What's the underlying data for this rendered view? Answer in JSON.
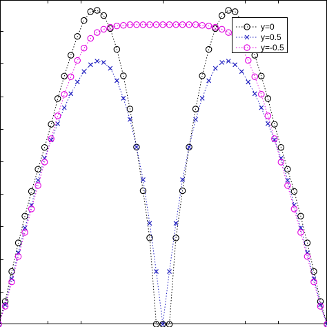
{
  "chart_data": {
    "type": "scatter",
    "xlim": [
      -1,
      1
    ],
    "ylim": [
      0,
      10
    ],
    "grid": false,
    "legend_location": "top-right",
    "series": [
      {
        "name": "y=0",
        "marker": "circle",
        "color": "#000000",
        "x": [
          -1.0,
          -0.96,
          -0.92,
          -0.88,
          -0.84,
          -0.8,
          -0.76,
          -0.72,
          -0.68,
          -0.64,
          -0.6,
          -0.56,
          -0.52,
          -0.48,
          -0.44,
          -0.4,
          -0.36,
          -0.32,
          -0.28,
          -0.24,
          -0.2,
          -0.16,
          -0.12,
          -0.08,
          -0.04,
          0.0,
          0.04,
          0.08,
          0.12,
          0.16,
          0.2,
          0.24,
          0.28,
          0.32,
          0.36,
          0.4,
          0.44,
          0.48,
          0.52,
          0.56,
          0.6,
          0.64,
          0.68,
          0.72,
          0.76,
          0.8,
          0.84,
          0.88,
          0.92,
          0.96,
          1.0
        ],
        "y": [
          0.0,
          0.7,
          1.62,
          2.5,
          3.32,
          4.08,
          4.76,
          5.43,
          6.14,
          6.93,
          7.62,
          8.26,
          8.84,
          9.33,
          9.6,
          9.64,
          9.48,
          9.08,
          8.44,
          7.63,
          6.61,
          5.44,
          4.1,
          2.65,
          0.0,
          0.0,
          0.0,
          2.65,
          4.1,
          5.44,
          6.61,
          7.63,
          8.44,
          9.08,
          9.48,
          9.64,
          9.6,
          9.33,
          8.84,
          8.26,
          7.62,
          6.93,
          6.14,
          5.43,
          4.76,
          4.08,
          3.32,
          2.5,
          1.62,
          0.7,
          0.0
        ]
      },
      {
        "name": "y=0.5",
        "marker": "x",
        "color": "#1f1fbf",
        "x": [
          -1.0,
          -0.96,
          -0.92,
          -0.88,
          -0.84,
          -0.8,
          -0.76,
          -0.72,
          -0.68,
          -0.64,
          -0.6,
          -0.56,
          -0.52,
          -0.48,
          -0.44,
          -0.4,
          -0.36,
          -0.32,
          -0.28,
          -0.24,
          -0.2,
          -0.16,
          -0.12,
          -0.08,
          -0.04,
          0.0,
          0.04,
          0.08,
          0.12,
          0.16,
          0.2,
          0.24,
          0.28,
          0.32,
          0.36,
          0.4,
          0.44,
          0.48,
          0.52,
          0.56,
          0.6,
          0.64,
          0.68,
          0.72,
          0.76,
          0.8,
          0.84,
          0.88,
          0.92,
          0.96,
          1.0
        ],
        "y": [
          0.0,
          0.6,
          1.4,
          2.2,
          2.96,
          3.66,
          4.42,
          5.1,
          5.66,
          6.16,
          6.65,
          7.08,
          7.44,
          7.76,
          7.97,
          8.08,
          8.04,
          7.86,
          7.48,
          6.94,
          6.29,
          5.44,
          4.44,
          3.1,
          1.62,
          0.0,
          1.62,
          3.1,
          4.44,
          5.44,
          6.29,
          6.94,
          7.48,
          7.86,
          8.04,
          8.08,
          7.97,
          7.76,
          7.44,
          7.08,
          6.65,
          6.16,
          5.66,
          5.1,
          4.42,
          3.66,
          2.96,
          2.2,
          1.4,
          0.6,
          0.0
        ]
      },
      {
        "name": "y=-0.5",
        "marker": "circle",
        "color": "#e000e0",
        "x": [
          -1.0,
          -0.96,
          -0.92,
          -0.88,
          -0.84,
          -0.8,
          -0.76,
          -0.72,
          -0.68,
          -0.64,
          -0.6,
          -0.56,
          -0.52,
          -0.48,
          -0.44,
          -0.4,
          -0.36,
          -0.32,
          -0.28,
          -0.24,
          -0.2,
          -0.16,
          -0.12,
          -0.08,
          -0.04,
          0.0,
          0.04,
          0.08,
          0.12,
          0.16,
          0.2,
          0.24,
          0.28,
          0.32,
          0.36,
          0.4,
          0.44,
          0.48,
          0.52,
          0.56,
          0.6,
          0.64,
          0.68,
          0.72,
          0.76,
          0.8,
          0.84,
          0.88,
          0.92,
          0.96,
          1.0
        ],
        "y": [
          0.0,
          0.55,
          1.3,
          2.08,
          2.82,
          3.54,
          4.26,
          4.98,
          5.7,
          6.4,
          7.06,
          7.6,
          8.1,
          8.48,
          8.78,
          8.96,
          9.06,
          9.12,
          9.16,
          9.18,
          9.2,
          9.2,
          9.2,
          9.2,
          9.2,
          9.2,
          9.2,
          9.2,
          9.2,
          9.2,
          9.2,
          9.18,
          9.16,
          9.12,
          9.06,
          8.96,
          8.78,
          8.48,
          8.1,
          7.6,
          7.06,
          6.4,
          5.7,
          4.98,
          4.26,
          3.54,
          2.82,
          2.08,
          1.3,
          0.55,
          0.0
        ]
      }
    ]
  }
}
